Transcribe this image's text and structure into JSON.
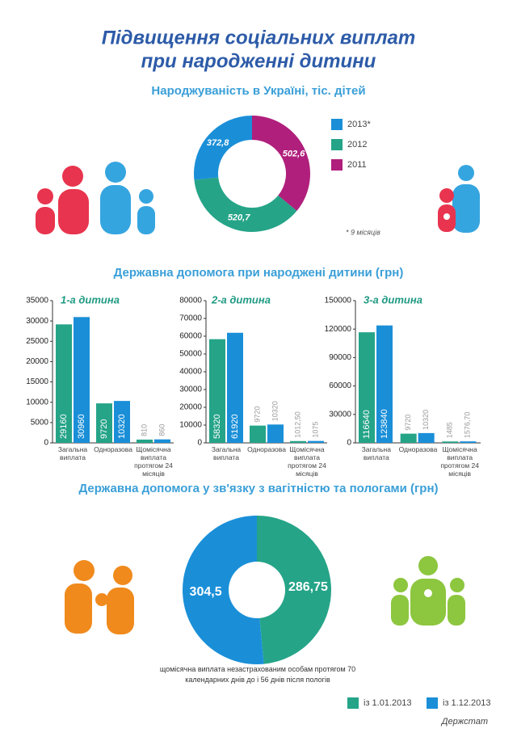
{
  "title_lines": [
    "Підвищення соціальних виплат",
    "при народженні дитини"
  ],
  "births_aid_title": "Державна допомога при народжені дитини (грн)",
  "source": "Держстат",
  "chart_data": [
    {
      "type": "pie",
      "title": "Народжуваність в Україні, тіс. дітей",
      "series": [
        {
          "name": "2013*",
          "color": "#1a8fd8"
        },
        {
          "name": "2012",
          "color": "#25a488"
        },
        {
          "name": "2011",
          "color": "#b01f7c"
        }
      ],
      "values": [
        372.8,
        520.7,
        502.6
      ],
      "value_labels": [
        "372,8",
        "520,7",
        "502,6"
      ],
      "note": "* 9 місяців",
      "legend": "right"
    },
    {
      "type": "bar",
      "title": "1-а дитина",
      "categories": [
        "Загальна виплата",
        "Одноразова",
        "Щомісячна виплата протягом 24 місяців"
      ],
      "series": [
        {
          "color": "#25a488",
          "values": [
            29160,
            9720,
            810
          ]
        },
        {
          "color": "#1a8fd8",
          "values": [
            30960,
            10320,
            860
          ]
        }
      ],
      "ylim": [
        0,
        35000
      ],
      "yticks": [
        0,
        5000,
        10000,
        15000,
        20000,
        25000,
        30000,
        35000
      ]
    },
    {
      "type": "bar",
      "title": "2-а дитина",
      "categories": [
        "Загальна виплата",
        "Одноразова",
        "Щомісячна виплата протягом 24 місяців"
      ],
      "series": [
        {
          "color": "#25a488",
          "values": [
            58320,
            9720,
            1012.5
          ],
          "value_labels": [
            "58320",
            "9720",
            "1012,50"
          ]
        },
        {
          "color": "#1a8fd8",
          "values": [
            61920,
            10320,
            1075
          ]
        }
      ],
      "ylim": [
        0,
        80000
      ],
      "yticks": [
        0,
        10000,
        20000,
        30000,
        40000,
        50000,
        60000,
        70000,
        80000
      ]
    },
    {
      "type": "bar",
      "title": "3-а дитина",
      "categories": [
        "Загальна виплата",
        "Одноразова",
        "Щомісячна виплата протягом 24 місяців"
      ],
      "series": [
        {
          "color": "#25a488",
          "values": [
            116640,
            9720,
            1485
          ]
        },
        {
          "color": "#1a8fd8",
          "values": [
            123840,
            10320,
            1576.7
          ],
          "value_labels": [
            "123840",
            "10320",
            "1576,70"
          ]
        }
      ],
      "ylim": [
        0,
        150000
      ],
      "yticks": [
        0,
        30000,
        60000,
        90000,
        120000,
        150000
      ]
    },
    {
      "type": "pie",
      "title": "Державна допомога у зв'язку з  вагітністю та пологами (грн)",
      "series": [
        {
          "name": "із 1.01.2013",
          "color": "#25a488"
        },
        {
          "name": "із 1.12.2013",
          "color": "#1a8fd8"
        }
      ],
      "values": [
        286.75,
        304.5
      ],
      "value_labels": [
        "286,75",
        "304,5"
      ],
      "caption": "щомісячна виплата незастрахованим особам протягом 70 календарних  днів до і 56 днів після пологів",
      "legend": "bottom"
    }
  ]
}
